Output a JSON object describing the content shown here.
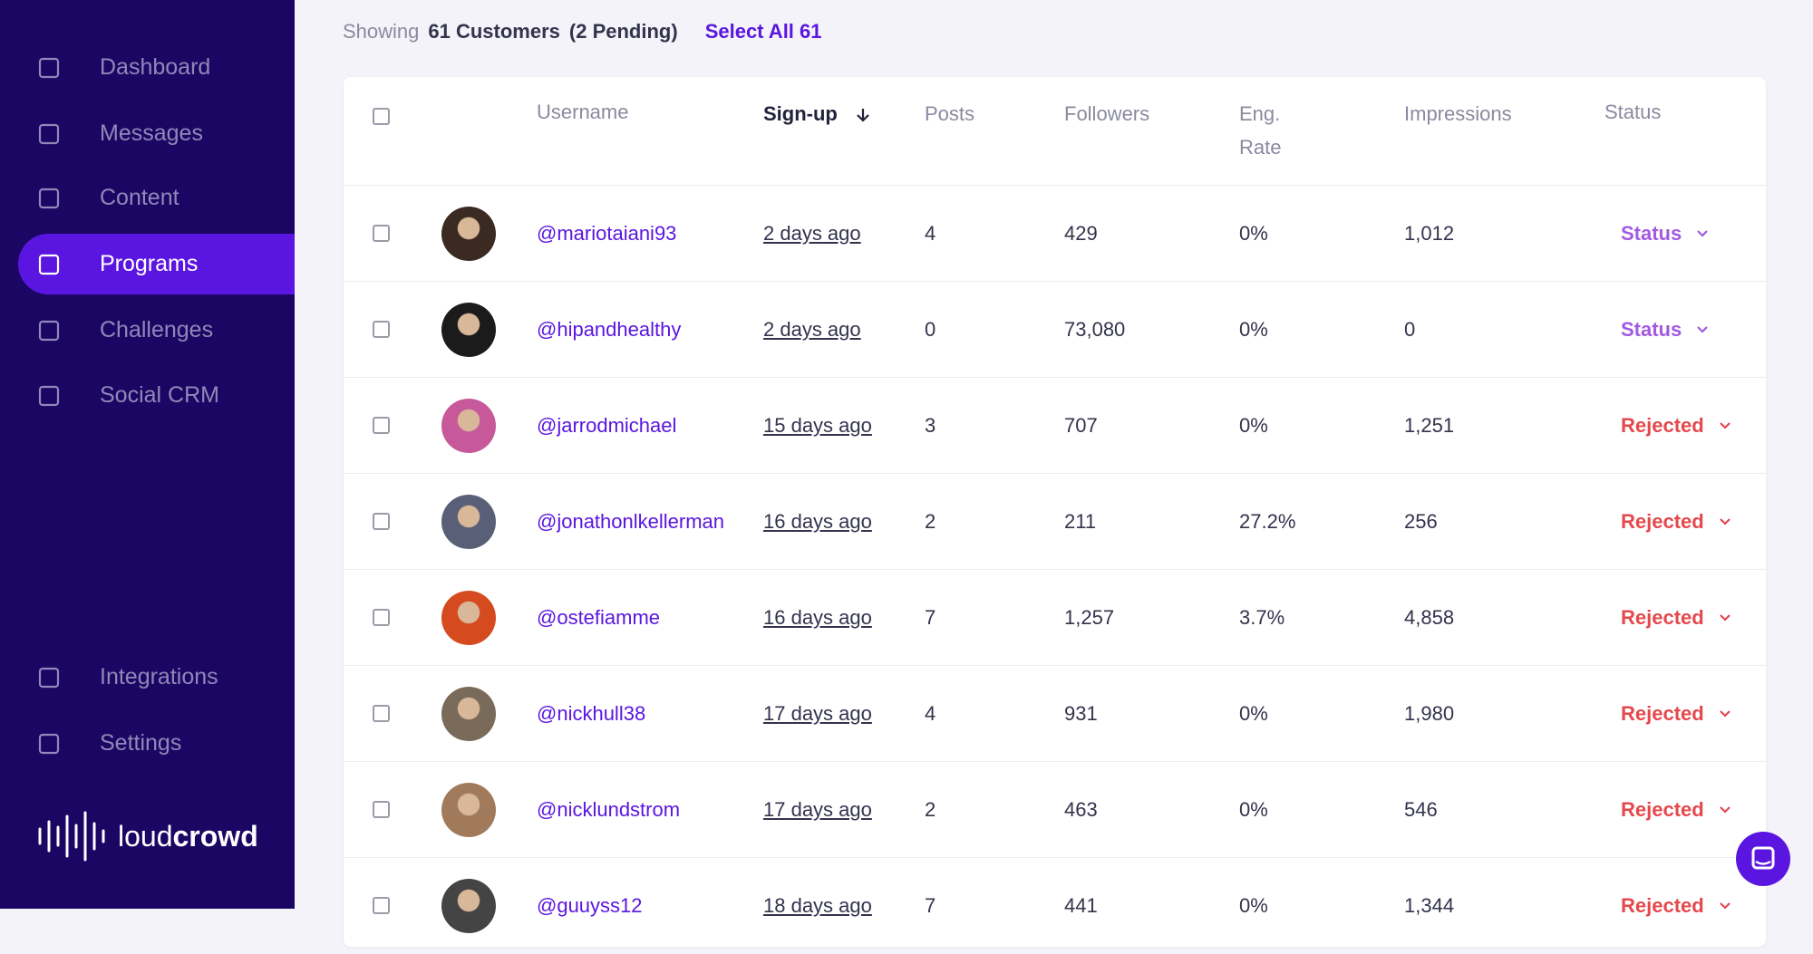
{
  "sidebar": {
    "nav": [
      "Dashboard",
      "Messages",
      "Content",
      "Programs",
      "Challenges",
      "Social CRM"
    ],
    "active": 3,
    "bottom_nav": [
      "Integrations",
      "Settings"
    ],
    "logo": {
      "light": "loud",
      "bold": "crowd"
    }
  },
  "toolbar": {
    "showing": "Showing",
    "count": "61 Customers",
    "pending": "(2 Pending)",
    "select_all": "Select All 61"
  },
  "table": {
    "headers": [
      "Username",
      "Sign-up",
      "Posts",
      "Followers",
      "Eng. Rate",
      "Impressions",
      "Status"
    ],
    "rows": [
      [
        "@mariotaiani93",
        "2 days ago",
        "4",
        "429",
        "0%",
        "1,012",
        "Status"
      ],
      [
        "@hipandhealthy",
        "2 days ago",
        "0",
        "73,080",
        "0%",
        "0",
        "Status"
      ],
      [
        "@jarrodmichael",
        "15 days ago",
        "3",
        "707",
        "0%",
        "1,251",
        "Rejected"
      ],
      [
        "@jonathonlkellerman",
        "16 days ago",
        "2",
        "211",
        "27.2%",
        "256",
        "Rejected"
      ],
      [
        "@ostefiamme",
        "16 days ago",
        "7",
        "1,257",
        "3.7%",
        "4,858",
        "Rejected"
      ],
      [
        "@nickhull38",
        "17 days ago",
        "4",
        "931",
        "0%",
        "1,980",
        "Rejected"
      ],
      [
        "@nicklundstrom",
        "17 days ago",
        "2",
        "463",
        "0%",
        "546",
        "Rejected"
      ],
      [
        "@guuyss12",
        "18 days ago",
        "7",
        "441",
        "0%",
        "1,344",
        "Rejected"
      ]
    ]
  }
}
